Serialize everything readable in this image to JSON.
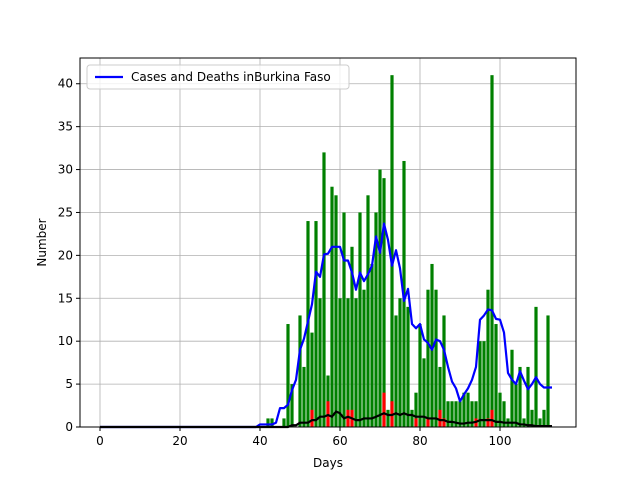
{
  "chart_data": {
    "type": "bar",
    "xlabel": "Days",
    "ylabel": "Number",
    "xlim": [
      -5,
      119
    ],
    "ylim": [
      0,
      43
    ],
    "xticks": [
      0,
      20,
      40,
      60,
      80,
      100
    ],
    "yticks": [
      0,
      5,
      10,
      15,
      20,
      25,
      30,
      35,
      40
    ],
    "grid": true,
    "legend_position": "upper-left",
    "x": [
      0,
      1,
      2,
      3,
      4,
      5,
      6,
      7,
      8,
      9,
      10,
      11,
      12,
      13,
      14,
      15,
      16,
      17,
      18,
      19,
      20,
      21,
      22,
      23,
      24,
      25,
      26,
      27,
      28,
      29,
      30,
      31,
      32,
      33,
      34,
      35,
      36,
      37,
      38,
      39,
      40,
      41,
      42,
      43,
      44,
      45,
      46,
      47,
      48,
      49,
      50,
      51,
      52,
      53,
      54,
      55,
      56,
      57,
      58,
      59,
      60,
      61,
      62,
      63,
      64,
      65,
      66,
      67,
      68,
      69,
      70,
      71,
      72,
      73,
      74,
      75,
      76,
      77,
      78,
      79,
      80,
      81,
      82,
      83,
      84,
      85,
      86,
      87,
      88,
      89,
      90,
      91,
      92,
      93,
      94,
      95,
      96,
      97,
      98,
      99,
      100,
      101,
      102,
      103,
      104,
      105,
      106,
      107,
      108,
      109,
      110,
      111,
      112,
      113
    ],
    "series": [
      {
        "kind": "bar",
        "color": "#008000",
        "values": [
          0,
          0,
          0,
          0,
          0,
          0,
          0,
          0,
          0,
          0,
          0,
          0,
          0,
          0,
          0,
          0,
          0,
          0,
          0,
          0,
          0,
          0,
          0,
          0,
          0,
          0,
          0,
          0,
          0,
          0,
          0,
          0,
          0,
          0,
          0,
          0,
          0,
          0,
          0,
          0,
          0,
          0,
          1,
          1,
          0,
          0,
          1,
          12,
          5,
          0,
          13,
          7,
          24,
          11,
          24,
          15,
          32,
          6,
          28,
          27,
          15,
          25,
          15,
          21,
          15,
          25,
          16,
          27,
          19,
          25,
          30,
          29,
          2,
          41,
          13,
          15,
          31,
          14,
          2,
          4,
          12,
          8,
          16,
          19,
          16,
          7,
          13,
          3,
          3,
          3,
          3,
          4,
          4,
          3,
          3,
          10,
          10,
          16,
          41,
          12,
          4,
          3,
          1,
          9,
          5,
          7,
          1,
          7,
          2,
          14,
          1,
          2,
          13,
          0
        ]
      },
      {
        "kind": "bar",
        "color": "#ff0000",
        "values": [
          0,
          0,
          0,
          0,
          0,
          0,
          0,
          0,
          0,
          0,
          0,
          0,
          0,
          0,
          0,
          0,
          0,
          0,
          0,
          0,
          0,
          0,
          0,
          0,
          0,
          0,
          0,
          0,
          0,
          0,
          0,
          0,
          0,
          0,
          0,
          0,
          0,
          0,
          0,
          0,
          0,
          0,
          0,
          0,
          0,
          0,
          0,
          0,
          0,
          0,
          0,
          0,
          0,
          2,
          0,
          0,
          0,
          3,
          0,
          0,
          0,
          0,
          2,
          2,
          0,
          0,
          0,
          0,
          0,
          0,
          0,
          4,
          0,
          3,
          0,
          0,
          0,
          0,
          0,
          1,
          0,
          0,
          1,
          0,
          0,
          2,
          1,
          0,
          0,
          0,
          0,
          0,
          0,
          0,
          1,
          0,
          0,
          1,
          2,
          0,
          0,
          0,
          0,
          0,
          0,
          0,
          0,
          0,
          0,
          0,
          0,
          0,
          0,
          0
        ]
      },
      {
        "name": "Cases and Deaths inBurkina Faso",
        "kind": "line",
        "color": "#0000ff",
        "values": [
          0,
          0,
          0,
          0,
          0,
          0,
          0,
          0,
          0,
          0,
          0,
          0,
          0,
          0,
          0,
          0,
          0,
          0,
          0,
          0,
          0,
          0,
          0,
          0,
          0,
          0,
          0,
          0,
          0,
          0,
          0,
          0,
          0,
          0,
          0,
          0,
          0,
          0,
          0,
          0,
          0.3,
          0.3,
          0.3,
          0.3,
          0.5,
          2.2,
          2.2,
          2.6,
          4.3,
          5.5,
          9.0,
          10.3,
          12.3,
          14.3,
          18.1,
          17.5,
          20.1,
          20.2,
          21.0,
          21.0,
          21.0,
          19.4,
          19.4,
          18.0,
          16.0,
          18.0,
          17.0,
          17.8,
          18.8,
          22.2,
          20.3,
          23.7,
          21.8,
          18.8,
          20.6,
          18.5,
          14.7,
          16.1,
          12.0,
          11.5,
          12.0,
          10.2,
          9.8,
          9.0,
          10.2,
          10.0,
          9.0,
          7.0,
          5.3,
          4.5,
          3.0,
          3.8,
          4.5,
          5.5,
          7.0,
          12.5,
          13.0,
          13.7,
          13.6,
          12.6,
          12.5,
          11.0,
          6.3,
          5.5,
          5.0,
          6.5,
          5.4,
          4.4,
          5.0,
          5.8,
          5.0,
          4.6,
          4.6,
          4.6
        ]
      },
      {
        "kind": "line",
        "color": "#000000",
        "values": [
          0,
          0,
          0,
          0,
          0,
          0,
          0,
          0,
          0,
          0,
          0,
          0,
          0,
          0,
          0,
          0,
          0,
          0,
          0,
          0,
          0,
          0,
          0,
          0,
          0,
          0,
          0,
          0,
          0,
          0,
          0,
          0,
          0,
          0,
          0,
          0,
          0,
          0,
          0,
          0,
          0,
          0,
          0,
          0,
          0,
          0,
          0,
          0,
          0.2,
          0.2,
          0.5,
          0.5,
          0.5,
          0.8,
          0.8,
          1.2,
          1.2,
          1.4,
          1.2,
          1.8,
          1.6,
          1.0,
          1.2,
          1.0,
          0.8,
          0.8,
          1.0,
          1.0,
          1.0,
          1.2,
          1.4,
          1.6,
          1.4,
          1.4,
          1.6,
          1.4,
          1.6,
          1.4,
          1.4,
          1.2,
          1.2,
          1.2,
          1.0,
          1.0,
          1.0,
          0.8,
          0.8,
          0.6,
          0.6,
          0.5,
          0.4,
          0.4,
          0.5,
          0.5,
          0.6,
          0.8,
          0.8,
          0.8,
          0.8,
          0.6,
          0.6,
          0.5,
          0.5,
          0.5,
          0.5,
          0.3,
          0.3,
          0.2,
          0.2,
          0.1,
          0.1,
          0.1,
          0.1,
          0.1
        ]
      }
    ]
  }
}
